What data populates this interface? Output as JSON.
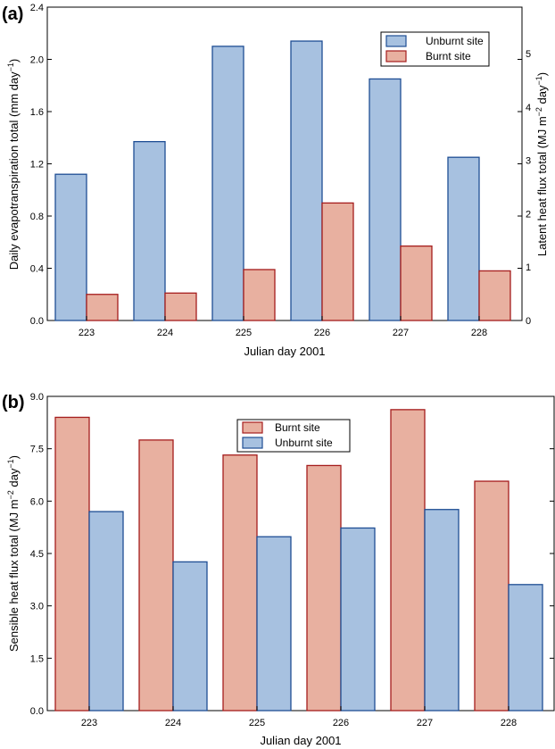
{
  "chart_data": [
    {
      "type": "bar",
      "panel_label": "(a)",
      "categories": [
        "223",
        "224",
        "225",
        "226",
        "227",
        "228"
      ],
      "series": [
        {
          "name": "Unburnt site",
          "values": [
            1.12,
            1.37,
            2.1,
            2.14,
            1.85,
            1.25
          ],
          "color": "#a7c1e0",
          "edge": "#1f4e94"
        },
        {
          "name": "Burnt site",
          "values": [
            0.2,
            0.21,
            0.39,
            0.9,
            0.57,
            0.38
          ],
          "color": "#e8b0a0",
          "edge": "#a51d1d"
        }
      ],
      "xlabel": "Julian day 2001",
      "ylabel": "Daily evapotranspiration total (mm day",
      "ylabel_sup": "−1",
      "ylabel_end": ")",
      "ylim": [
        0,
        2.4
      ],
      "yticks": [
        "0.0",
        "0.4",
        "0.8",
        "1.2",
        "1.6",
        "2.0",
        "2.4"
      ],
      "y2label": "Latent heat flux total (MJ m",
      "y2label_sup1": "−2",
      "y2label_mid": " day",
      "y2label_sup2": "−1",
      "y2label_end": ")",
      "y2lim": [
        0,
        5.87
      ],
      "y2ticks": [
        "0",
        "1",
        "2",
        "3",
        "4",
        "5"
      ],
      "legend": "top-right",
      "grid": false
    },
    {
      "type": "bar",
      "panel_label": "(b)",
      "categories": [
        "223",
        "224",
        "225",
        "226",
        "227",
        "228"
      ],
      "series": [
        {
          "name": "Burnt site",
          "values": [
            8.4,
            7.75,
            7.32,
            7.02,
            8.62,
            6.57
          ],
          "color": "#e8b0a0",
          "edge": "#a51d1d"
        },
        {
          "name": "Unburnt site",
          "values": [
            5.7,
            4.26,
            4.98,
            5.23,
            5.76,
            3.61
          ],
          "color": "#a7c1e0",
          "edge": "#1f4e94"
        }
      ],
      "xlabel": "Julian day 2001",
      "ylabel": "Sensible heat flux total (MJ m",
      "ylabel_sup1": "−2",
      "ylabel_mid": " day",
      "ylabel_sup2": "−1",
      "ylabel_end": ")",
      "ylim": [
        0,
        9.0
      ],
      "yticks": [
        "0.0",
        "1.5",
        "3.0",
        "4.5",
        "6.0",
        "7.5",
        "9.0"
      ],
      "legend": "top-center",
      "grid": false
    }
  ]
}
